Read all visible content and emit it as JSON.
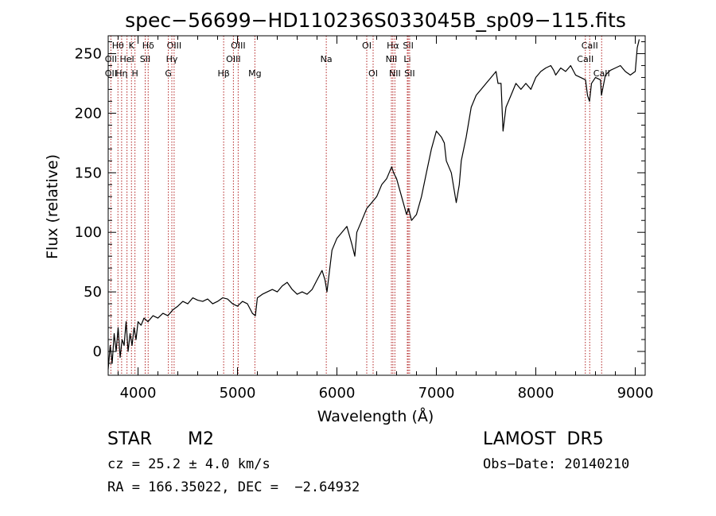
{
  "chart_data": {
    "type": "line",
    "title": "spec−56699−HD110236S033045B_sp09−115.fits",
    "xlabel": "Wavelength (Å)",
    "ylabel": "Flux (relative)",
    "xlim": [
      3700,
      9100
    ],
    "ylim": [
      -20,
      265
    ],
    "xticks": [
      4000,
      5000,
      6000,
      7000,
      8000,
      9000
    ],
    "yticks": [
      0,
      50,
      100,
      150,
      200,
      250
    ],
    "line_color": "#000000",
    "marker_color": "#b22222",
    "spectral_lines": [
      {
        "label": "Hθ",
        "x": 3798,
        "row": 0
      },
      {
        "label": "K",
        "x": 3934,
        "row": 0
      },
      {
        "label": "Hδ",
        "x": 4102,
        "row": 0
      },
      {
        "label": "OIII",
        "x": 4363,
        "row": 0
      },
      {
        "label": "OIII",
        "x": 5007,
        "row": 0
      },
      {
        "label": "OI",
        "x": 6300,
        "row": 0
      },
      {
        "label": "Hα",
        "x": 6563,
        "row": 0
      },
      {
        "label": "SII",
        "x": 6717,
        "row": 0
      },
      {
        "label": "CaII",
        "x": 8542,
        "row": 0
      },
      {
        "label": "OII",
        "x": 3727,
        "row": 1
      },
      {
        "label": "HeI",
        "x": 3889,
        "row": 1
      },
      {
        "label": "SII",
        "x": 4072,
        "row": 1
      },
      {
        "label": "Hγ",
        "x": 4340,
        "row": 1
      },
      {
        "label": "OIII",
        "x": 4959,
        "row": 1
      },
      {
        "label": "Na",
        "x": 5893,
        "row": 1
      },
      {
        "label": "NII",
        "x": 6548,
        "row": 1
      },
      {
        "label": "Li",
        "x": 6708,
        "row": 1
      },
      {
        "label": "CaII",
        "x": 8498,
        "row": 1
      },
      {
        "label": "OII",
        "x": 3727,
        "row": 2
      },
      {
        "label": "Hη",
        "x": 3835,
        "row": 2
      },
      {
        "label": "H",
        "x": 3969,
        "row": 2
      },
      {
        "label": "G",
        "x": 4305,
        "row": 2
      },
      {
        "label": "Hβ",
        "x": 4861,
        "row": 2
      },
      {
        "label": "Mg",
        "x": 5175,
        "row": 2
      },
      {
        "label": "OI",
        "x": 6364,
        "row": 2
      },
      {
        "label": "NII",
        "x": 6583,
        "row": 2
      },
      {
        "label": "SII",
        "x": 6731,
        "row": 2
      },
      {
        "label": "CaII",
        "x": 8662,
        "row": 2
      }
    ],
    "series": [
      {
        "x": [
          3700,
          3720,
          3740,
          3760,
          3780,
          3800,
          3820,
          3840,
          3860,
          3880,
          3900,
          3920,
          3940,
          3960,
          3980,
          4000,
          4030,
          4060,
          4100,
          4150,
          4200,
          4250,
          4300,
          4350,
          4400,
          4450,
          4500,
          4550,
          4600,
          4650,
          4700,
          4750,
          4800,
          4850,
          4900,
          4950,
          5000,
          5050,
          5100,
          5150,
          5180,
          5200,
          5250,
          5300,
          5350,
          5400,
          5450,
          5500,
          5550,
          5600,
          5650,
          5700,
          5750,
          5800,
          5850,
          5880,
          5900,
          5950,
          6000,
          6050,
          6100,
          6150,
          6180,
          6200,
          6250,
          6300,
          6350,
          6400,
          6450,
          6500,
          6550,
          6570,
          6600,
          6650,
          6700,
          6720,
          6750,
          6800,
          6850,
          6900,
          6950,
          7000,
          7050,
          7080,
          7100,
          7150,
          7200,
          7230,
          7250,
          7300,
          7350,
          7400,
          7450,
          7500,
          7550,
          7600,
          7620,
          7650,
          7670,
          7700,
          7750,
          7800,
          7850,
          7900,
          7950,
          8000,
          8050,
          8100,
          8150,
          8180,
          8200,
          8250,
          8300,
          8350,
          8400,
          8450,
          8500,
          8520,
          8540,
          8560,
          8600,
          8650,
          8660,
          8700,
          8750,
          8800,
          8850,
          8900,
          8950,
          9000,
          9020,
          9040
        ],
        "values": [
          -15,
          5,
          -10,
          15,
          0,
          20,
          -5,
          10,
          5,
          25,
          0,
          15,
          5,
          20,
          10,
          25,
          22,
          28,
          25,
          30,
          28,
          32,
          30,
          35,
          38,
          42,
          40,
          45,
          43,
          42,
          44,
          40,
          42,
          45,
          44,
          40,
          38,
          42,
          40,
          32,
          30,
          45,
          48,
          50,
          52,
          50,
          55,
          58,
          52,
          48,
          50,
          48,
          52,
          60,
          68,
          60,
          50,
          85,
          95,
          100,
          105,
          90,
          80,
          100,
          110,
          120,
          125,
          130,
          140,
          145,
          155,
          150,
          145,
          130,
          115,
          120,
          110,
          115,
          130,
          150,
          170,
          185,
          180,
          175,
          160,
          150,
          125,
          140,
          160,
          180,
          205,
          215,
          220,
          225,
          230,
          235,
          225,
          225,
          185,
          205,
          215,
          225,
          220,
          225,
          220,
          230,
          235,
          238,
          240,
          236,
          232,
          238,
          235,
          240,
          232,
          230,
          228,
          215,
          210,
          225,
          230,
          228,
          215,
          232,
          236,
          238,
          240,
          235,
          232,
          235,
          255,
          262
        ]
      }
    ]
  },
  "info": {
    "object_type": "STAR",
    "subclass": "M2",
    "survey": "LAMOST  DR5",
    "cz": "cz = 25.2 ± 4.0 km/s",
    "obs_date": "Obs−Date: 20140210",
    "radec": "RA = 166.35022, DEC =  −2.64932"
  }
}
